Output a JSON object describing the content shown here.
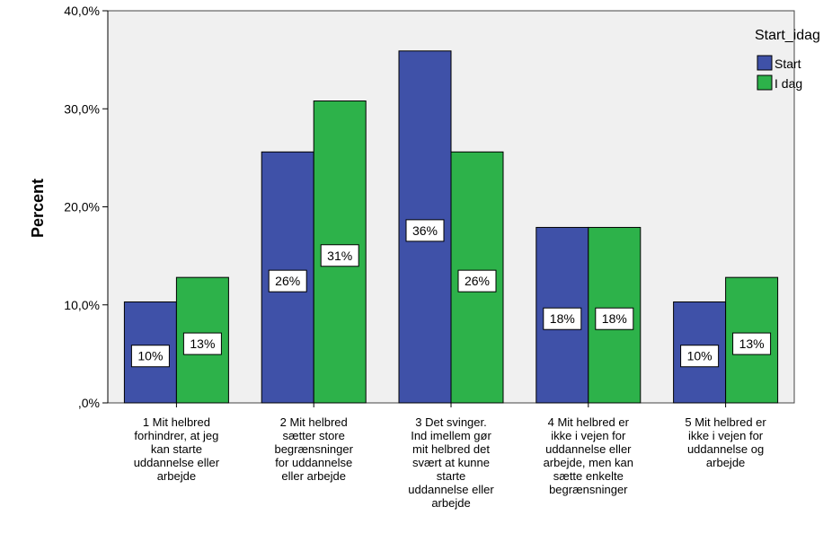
{
  "chart_data": {
    "type": "bar",
    "ylabel": "Percent",
    "xlabel": "",
    "ylim": [
      0,
      40
    ],
    "yticks": [
      ",0%",
      "10,0%",
      "20,0%",
      "30,0%",
      "40,0%"
    ],
    "legend_title": "Start_idag",
    "legend_position": "top-right",
    "categories": [
      [
        "1 Mit helbred",
        "forhindrer, at jeg",
        "kan starte",
        "uddannelse eller",
        "arbejde"
      ],
      [
        "2 Mit helbred",
        "sætter store",
        "begrænsninger",
        "for uddannelse",
        "eller arbejde"
      ],
      [
        "3 Det svinger.",
        "Ind imellem gør",
        "mit helbred det",
        "svært at kunne",
        "starte",
        "uddannelse eller",
        "arbejde"
      ],
      [
        "4 Mit helbred er",
        "ikke i vejen for",
        "uddannelse eller",
        "arbejde, men kan",
        "sætte enkelte",
        "begrænsninger"
      ],
      [
        "5 Mit helbred er",
        "ikke i vejen for",
        "uddannelse og",
        "arbejde"
      ]
    ],
    "series": [
      {
        "name": "Start",
        "color": "#3f51a8",
        "values": [
          10.3,
          25.6,
          35.9,
          17.9,
          10.3
        ],
        "labels": [
          "10%",
          "26%",
          "36%",
          "18%",
          "10%"
        ]
      },
      {
        "name": "I dag",
        "color": "#2db24a",
        "values": [
          12.8,
          30.8,
          25.6,
          17.9,
          12.8
        ],
        "labels": [
          "13%",
          "31%",
          "26%",
          "18%",
          "13%"
        ]
      }
    ],
    "plot_background": "#f0f0f0"
  }
}
